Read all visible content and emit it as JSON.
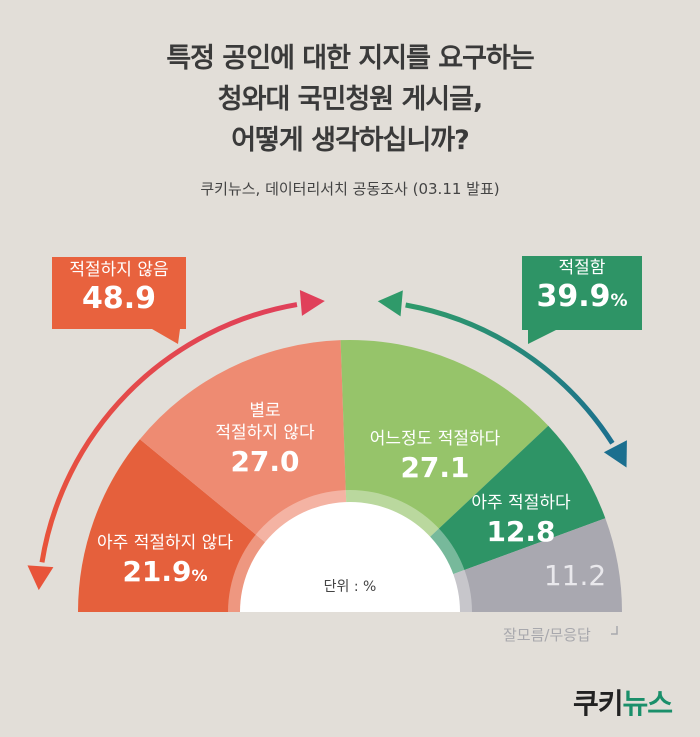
{
  "title_lines": [
    "특정 공인에 대한 지지를 요구하는",
    "청와대 국민청원 게시글,",
    "어떻게 생각하십니까?"
  ],
  "source": "쿠키뉴스, 데이터리서치 공동조사 (03.11 발표)",
  "unit_label": "단위 : %",
  "logo": {
    "main": "쿠키",
    "accent": "뉴스"
  },
  "summary": {
    "not_appropriate": {
      "label": "적절하지 않음",
      "value": "48.9",
      "color": "#e8623e"
    },
    "appropriate": {
      "label": "적절함",
      "value": "39.9",
      "unit": "%",
      "color": "#2e9466"
    }
  },
  "chart_data": {
    "type": "pie",
    "shape": "semicircle",
    "unit": "%",
    "segments": [
      {
        "label": "아주 적절하지 않다",
        "value": 21.9,
        "display": "21.9",
        "unit": "%",
        "color": "#e5603c"
      },
      {
        "label": "별로 적절하지 않다",
        "value": 27.0,
        "display": "27.0",
        "color": "#ee8b72"
      },
      {
        "label": "어느정도 적절하다",
        "value": 27.1,
        "display": "27.1",
        "color": "#96c46a"
      },
      {
        "label": "아주 적절하다",
        "value": 12.8,
        "display": "12.8",
        "color": "#2e9466"
      },
      {
        "label": "잘모름/무응답",
        "value": 11.2,
        "display": "11.2",
        "color": "#a9a8b0"
      }
    ]
  }
}
